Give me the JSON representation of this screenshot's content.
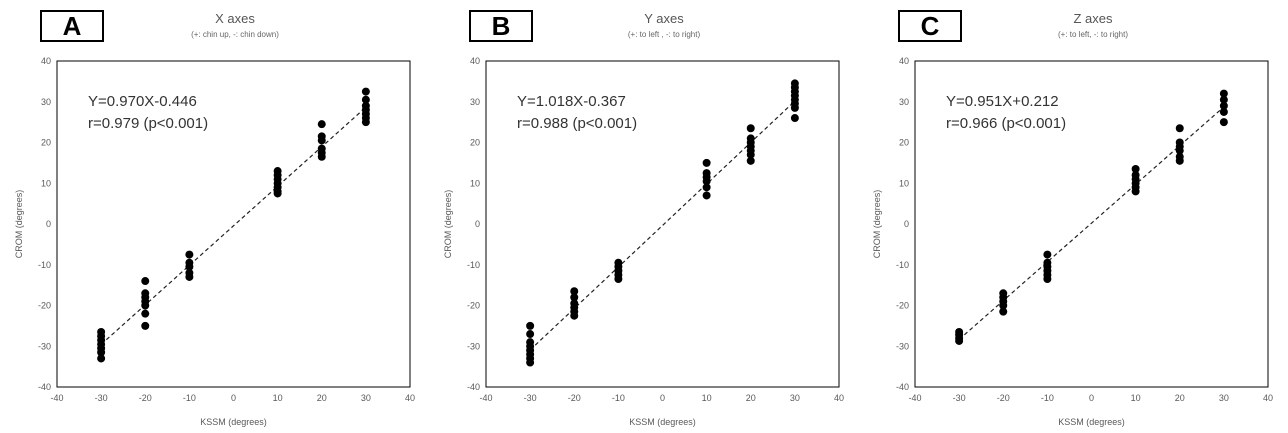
{
  "chart_data": [
    {
      "type": "scatter",
      "panel_label": "A",
      "title": "X axes",
      "subtitle": "(+: chin up, -: chin down)",
      "xlabel": "KSSM (degrees)",
      "ylabel": "CROM (degrees)",
      "xlim": [
        -40,
        40
      ],
      "ylim": [
        -40,
        40
      ],
      "xticks": [
        -40,
        -30,
        -20,
        -10,
        0,
        10,
        20,
        30,
        40
      ],
      "yticks": [
        -40,
        -30,
        -20,
        -10,
        0,
        10,
        20,
        30,
        40
      ],
      "grid": false,
      "equation": "Y=0.970X-0.446",
      "correlation": "r=0.979 (p<0.001)",
      "trendline": {
        "slope": 0.97,
        "intercept": -0.446,
        "x_range": [
          -30,
          30
        ],
        "style": "dashed"
      },
      "points": [
        {
          "x": -30,
          "y": -26.5
        },
        {
          "x": -30,
          "y": -27.5
        },
        {
          "x": -30,
          "y": -28.5
        },
        {
          "x": -30,
          "y": -29.5
        },
        {
          "x": -30,
          "y": -30.5
        },
        {
          "x": -30,
          "y": -31.5
        },
        {
          "x": -30,
          "y": -33
        },
        {
          "x": -20,
          "y": -14
        },
        {
          "x": -20,
          "y": -17
        },
        {
          "x": -20,
          "y": -18
        },
        {
          "x": -20,
          "y": -19
        },
        {
          "x": -20,
          "y": -20
        },
        {
          "x": -20,
          "y": -22
        },
        {
          "x": -20,
          "y": -25
        },
        {
          "x": -10,
          "y": -7.5
        },
        {
          "x": -10,
          "y": -9.5
        },
        {
          "x": -10,
          "y": -10.5
        },
        {
          "x": -10,
          "y": -12
        },
        {
          "x": -10,
          "y": -13
        },
        {
          "x": 10,
          "y": 13
        },
        {
          "x": 10,
          "y": 12
        },
        {
          "x": 10,
          "y": 11
        },
        {
          "x": 10,
          "y": 10
        },
        {
          "x": 10,
          "y": 9
        },
        {
          "x": 10,
          "y": 8
        },
        {
          "x": 10,
          "y": 7.5
        },
        {
          "x": 20,
          "y": 24.5
        },
        {
          "x": 20,
          "y": 21.5
        },
        {
          "x": 20,
          "y": 20.5
        },
        {
          "x": 20,
          "y": 18.5
        },
        {
          "x": 20,
          "y": 17.5
        },
        {
          "x": 20,
          "y": 16.5
        },
        {
          "x": 30,
          "y": 32.5
        },
        {
          "x": 30,
          "y": 30.5
        },
        {
          "x": 30,
          "y": 29
        },
        {
          "x": 30,
          "y": 28
        },
        {
          "x": 30,
          "y": 27
        },
        {
          "x": 30,
          "y": 26
        },
        {
          "x": 30,
          "y": 25
        }
      ]
    },
    {
      "type": "scatter",
      "panel_label": "B",
      "title": "Y axes",
      "subtitle": "(+: to left , -: to right)",
      "xlabel": "KSSM (degrees)",
      "ylabel": "CROM (degrees)",
      "xlim": [
        -40,
        40
      ],
      "ylim": [
        -40,
        40
      ],
      "xticks": [
        -40,
        -30,
        -20,
        -10,
        0,
        10,
        20,
        30,
        40
      ],
      "yticks": [
        -40,
        -30,
        -20,
        -10,
        0,
        10,
        20,
        30,
        40
      ],
      "grid": false,
      "equation": "Y=1.018X-0.367",
      "correlation": "r=0.988 (p<0.001)",
      "trendline": {
        "slope": 1.018,
        "intercept": -0.367,
        "x_range": [
          -30,
          30
        ],
        "style": "dashed"
      },
      "points": [
        {
          "x": -30,
          "y": -25
        },
        {
          "x": -30,
          "y": -27
        },
        {
          "x": -30,
          "y": -29
        },
        {
          "x": -30,
          "y": -30
        },
        {
          "x": -30,
          "y": -31
        },
        {
          "x": -30,
          "y": -32
        },
        {
          "x": -30,
          "y": -33
        },
        {
          "x": -30,
          "y": -34
        },
        {
          "x": -20,
          "y": -16.5
        },
        {
          "x": -20,
          "y": -18
        },
        {
          "x": -20,
          "y": -19.5
        },
        {
          "x": -20,
          "y": -20.5
        },
        {
          "x": -20,
          "y": -21.5
        },
        {
          "x": -20,
          "y": -22.5
        },
        {
          "x": -10,
          "y": -9.5
        },
        {
          "x": -10,
          "y": -10.5
        },
        {
          "x": -10,
          "y": -11.5
        },
        {
          "x": -10,
          "y": -12.5
        },
        {
          "x": -10,
          "y": -13.5
        },
        {
          "x": 10,
          "y": 15
        },
        {
          "x": 10,
          "y": 12.5
        },
        {
          "x": 10,
          "y": 11.5
        },
        {
          "x": 10,
          "y": 10.5
        },
        {
          "x": 10,
          "y": 9
        },
        {
          "x": 10,
          "y": 7
        },
        {
          "x": 20,
          "y": 23.5
        },
        {
          "x": 20,
          "y": 21
        },
        {
          "x": 20,
          "y": 20
        },
        {
          "x": 20,
          "y": 19
        },
        {
          "x": 20,
          "y": 18
        },
        {
          "x": 20,
          "y": 17
        },
        {
          "x": 20,
          "y": 15.5
        },
        {
          "x": 30,
          "y": 34.5
        },
        {
          "x": 30,
          "y": 33.5
        },
        {
          "x": 30,
          "y": 32.5
        },
        {
          "x": 30,
          "y": 31.5
        },
        {
          "x": 30,
          "y": 30.5
        },
        {
          "x": 30,
          "y": 29.5
        },
        {
          "x": 30,
          "y": 28.5
        },
        {
          "x": 30,
          "y": 26
        }
      ]
    },
    {
      "type": "scatter",
      "panel_label": "C",
      "title": "Z axes",
      "subtitle": "(+: to left, -: to right)",
      "xlabel": "KSSM (degrees)",
      "ylabel": "CROM (degrees)",
      "xlim": [
        -40,
        40
      ],
      "ylim": [
        -40,
        40
      ],
      "xticks": [
        -40,
        -30,
        -20,
        -10,
        0,
        10,
        20,
        30,
        40
      ],
      "yticks": [
        -40,
        -30,
        -20,
        -10,
        0,
        10,
        20,
        30,
        40
      ],
      "grid": false,
      "equation": "Y=0.951X+0.212",
      "correlation": "r=0.966 (p<0.001)",
      "trendline": {
        "slope": 0.951,
        "intercept": 0.212,
        "x_range": [
          -30,
          30
        ],
        "style": "dashed"
      },
      "points": [
        {
          "x": -30,
          "y": -26.5
        },
        {
          "x": -30,
          "y": -27.2
        },
        {
          "x": -30,
          "y": -28
        },
        {
          "x": -30,
          "y": -28.7
        },
        {
          "x": -20,
          "y": -17
        },
        {
          "x": -20,
          "y": -18
        },
        {
          "x": -20,
          "y": -19
        },
        {
          "x": -20,
          "y": -20
        },
        {
          "x": -20,
          "y": -21.5
        },
        {
          "x": -10,
          "y": -7.5
        },
        {
          "x": -10,
          "y": -9.5
        },
        {
          "x": -10,
          "y": -10.5
        },
        {
          "x": -10,
          "y": -11.5
        },
        {
          "x": -10,
          "y": -12.5
        },
        {
          "x": -10,
          "y": -13.5
        },
        {
          "x": 10,
          "y": 13.5
        },
        {
          "x": 10,
          "y": 12
        },
        {
          "x": 10,
          "y": 11
        },
        {
          "x": 10,
          "y": 10
        },
        {
          "x": 10,
          "y": 9
        },
        {
          "x": 10,
          "y": 8
        },
        {
          "x": 20,
          "y": 23.5
        },
        {
          "x": 20,
          "y": 20
        },
        {
          "x": 20,
          "y": 19
        },
        {
          "x": 20,
          "y": 18
        },
        {
          "x": 20,
          "y": 16.5
        },
        {
          "x": 20,
          "y": 15.5
        },
        {
          "x": 30,
          "y": 32
        },
        {
          "x": 30,
          "y": 30.5
        },
        {
          "x": 30,
          "y": 29
        },
        {
          "x": 30,
          "y": 27.5
        },
        {
          "x": 30,
          "y": 25
        }
      ]
    }
  ]
}
